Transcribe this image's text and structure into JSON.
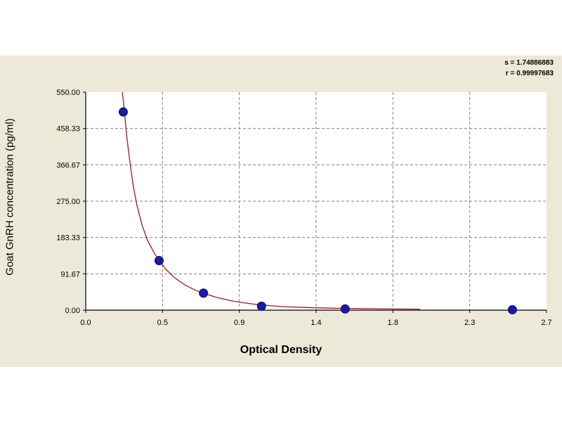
{
  "chart_data": {
    "type": "scatter",
    "xlabel": "Optical Density",
    "ylabel": "Goat GnRH concentration (pg/ml)",
    "xlim": [
      0.0,
      2.7
    ],
    "ylim": [
      0.0,
      550.0
    ],
    "x_ticks": [
      "0.0",
      "0.5",
      "0.9",
      "1.4",
      "1.8",
      "2.3",
      "2.7"
    ],
    "y_ticks": [
      "0.00",
      "91.67",
      "183.33",
      "275.00",
      "366.67",
      "458.33",
      "550.00"
    ],
    "grid": true,
    "points": [
      {
        "x": 0.22,
        "y": 500
      },
      {
        "x": 0.43,
        "y": 125
      },
      {
        "x": 0.69,
        "y": 43
      },
      {
        "x": 1.03,
        "y": 10
      },
      {
        "x": 1.52,
        "y": 3
      },
      {
        "x": 2.5,
        "y": 1
      }
    ],
    "fit_curve": {
      "x": [
        0.215,
        0.225,
        0.24,
        0.26,
        0.28,
        0.3,
        0.33,
        0.36,
        0.4,
        0.43,
        0.47,
        0.52,
        0.58,
        0.64,
        0.69,
        0.76,
        0.85,
        0.95,
        1.03,
        1.15,
        1.3,
        1.45,
        1.52,
        1.7,
        1.96
      ],
      "y": [
        550,
        510,
        440,
        370,
        310,
        265,
        215,
        178,
        145,
        125,
        103,
        82,
        64,
        51,
        43,
        33,
        24,
        17,
        13,
        9,
        6.5,
        5,
        4.5,
        3.5,
        2.5
      ]
    },
    "fit_color": "#9b1c1c",
    "point_color": "#1a1aa8",
    "stats": {
      "s": "s = 1.74886883",
      "r": "r = 0.99997683"
    }
  }
}
